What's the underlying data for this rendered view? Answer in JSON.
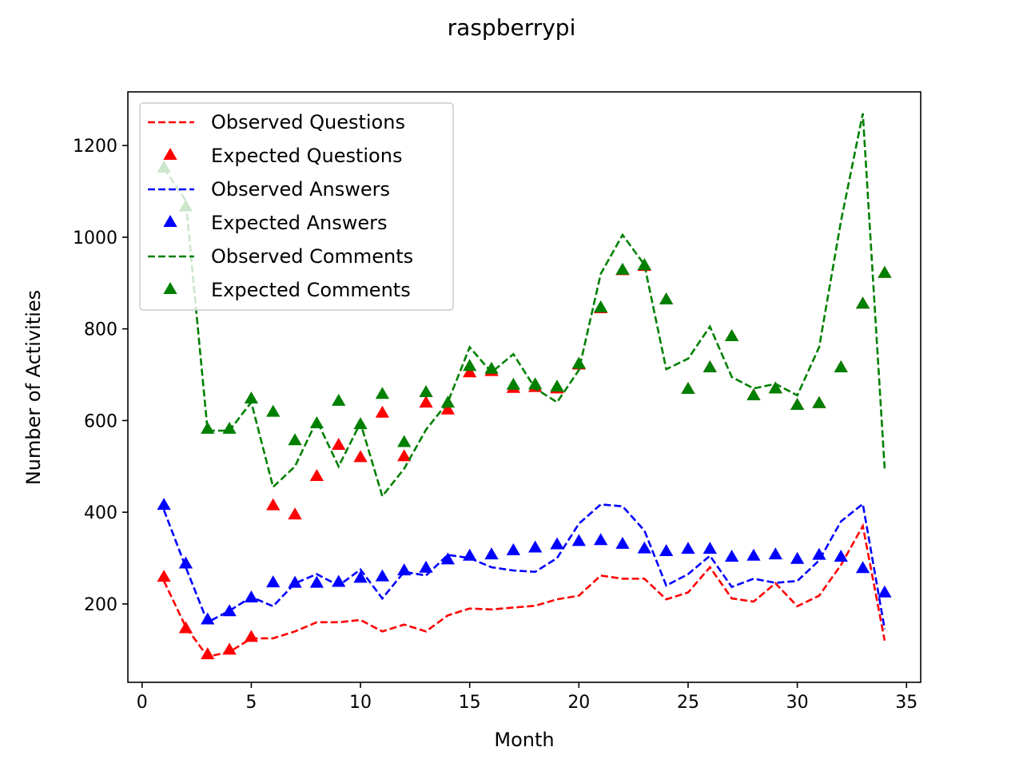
{
  "chart_data": {
    "type": "line",
    "title": "raspberrypi",
    "xlabel": "Month",
    "ylabel": "Number of Activities",
    "xlim": [
      -0.65,
      35.65
    ],
    "ylim": [
      29,
      1317
    ],
    "xticks": [
      0,
      5,
      10,
      15,
      20,
      25,
      30,
      35
    ],
    "yticks": [
      200,
      400,
      600,
      800,
      1000,
      1200
    ],
    "grid": false,
    "legend_position": "upper-left",
    "x": [
      1,
      2,
      3,
      4,
      5,
      6,
      7,
      8,
      9,
      10,
      11,
      12,
      13,
      14,
      15,
      16,
      17,
      18,
      19,
      20,
      21,
      22,
      23,
      24,
      25,
      26,
      27,
      28,
      29,
      30,
      31,
      32,
      33,
      34
    ],
    "series": [
      {
        "name": "Observed Questions",
        "kind": "line",
        "color": "#ff0000",
        "values": [
          250,
          150,
          85,
          95,
          125,
          125,
          140,
          160,
          160,
          165,
          140,
          155,
          140,
          175,
          190,
          188,
          192,
          196,
          210,
          218,
          262,
          255,
          255,
          210,
          225,
          280,
          212,
          205,
          245,
          195,
          218,
          285,
          370,
          120
        ]
      },
      {
        "name": "Expected Questions",
        "kind": "marker",
        "color": "#ff0000",
        "values": [
          257,
          145,
          88,
          98,
          126,
          413,
          393,
          477,
          545,
          518,
          615,
          520,
          637,
          622,
          703,
          706,
          669,
          671,
          668,
          720,
          843,
          926,
          935,
          862,
          667,
          714,
          782,
          653,
          668,
          632,
          636,
          714,
          853,
          920
        ]
      },
      {
        "name": "Observed Answers",
        "kind": "line",
        "color": "#0000ff",
        "values": [
          405,
          280,
          160,
          185,
          215,
          195,
          245,
          265,
          240,
          275,
          212,
          270,
          262,
          307,
          300,
          280,
          273,
          270,
          300,
          375,
          417,
          413,
          360,
          240,
          265,
          305,
          237,
          255,
          246,
          250,
          295,
          380,
          418,
          145
        ]
      },
      {
        "name": "Expected Answers",
        "kind": "marker",
        "color": "#0000ff",
        "values": [
          414,
          286,
          164,
          182,
          212,
          245,
          244,
          244,
          246,
          255,
          258,
          271,
          277,
          295,
          303,
          306,
          315,
          321,
          328,
          335,
          337,
          329,
          319,
          313,
          318,
          318,
          301,
          303,
          306,
          296,
          305,
          301,
          276,
          223
        ]
      },
      {
        "name": "Observed Comments",
        "kind": "line",
        "color": "#008000",
        "values": [
          1150,
          1080,
          578,
          578,
          640,
          455,
          500,
          600,
          500,
          595,
          435,
          495,
          580,
          640,
          760,
          705,
          745,
          670,
          640,
          710,
          920,
          1005,
          940,
          712,
          735,
          805,
          695,
          670,
          680,
          655,
          760,
          1035,
          1270,
          495
        ]
      },
      {
        "name": "Expected Comments",
        "kind": "marker",
        "color": "#008000",
        "values": [
          1150,
          1065,
          580,
          580,
          646,
          617,
          555,
          592,
          641,
          590,
          656,
          551,
          660,
          637,
          717,
          711,
          676,
          677,
          672,
          722,
          845,
          927,
          937,
          862,
          667,
          714,
          782,
          653,
          668,
          632,
          636,
          714,
          853,
          920
        ]
      }
    ]
  }
}
